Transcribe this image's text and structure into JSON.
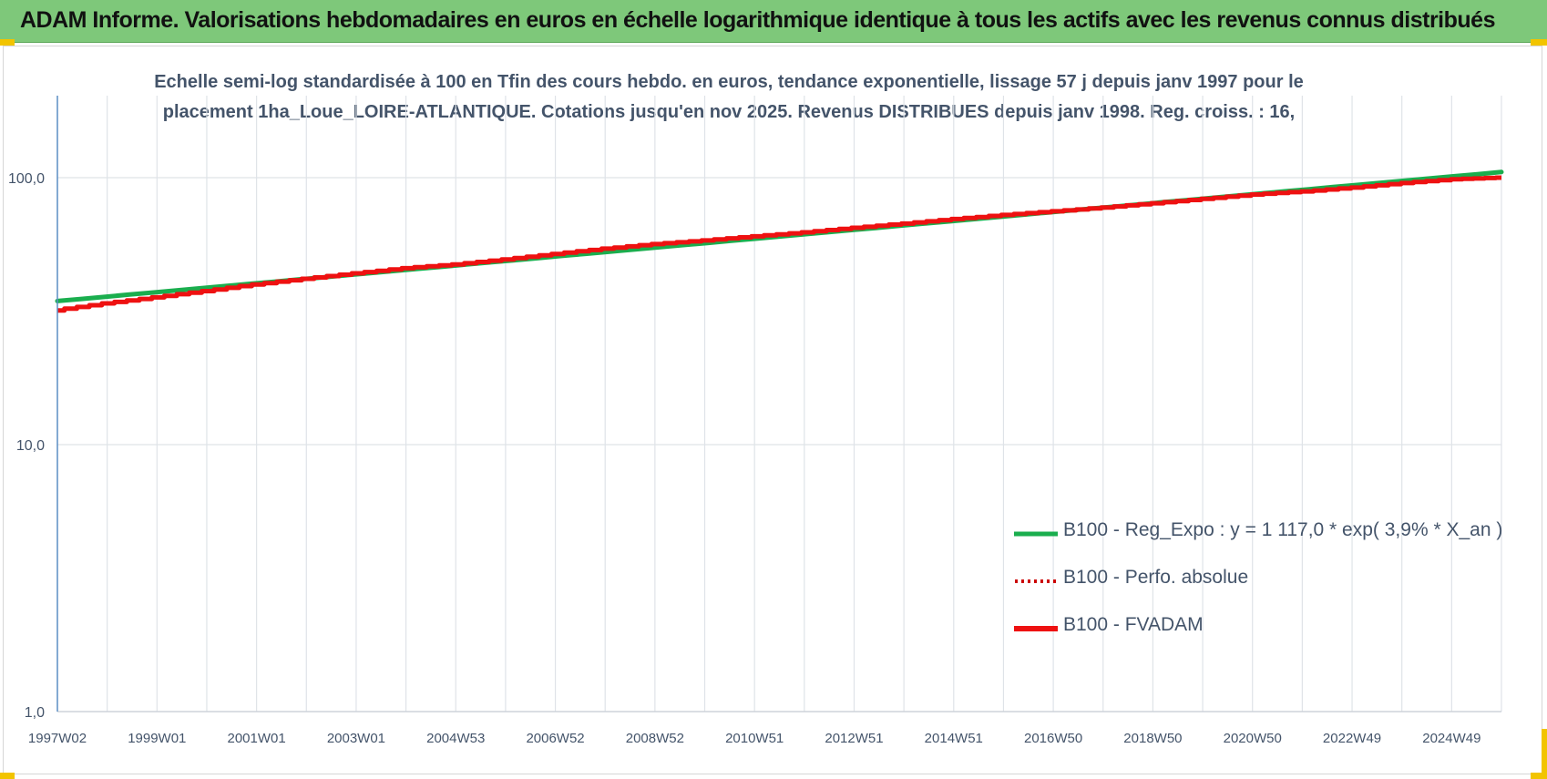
{
  "header": {
    "title": "ADAM Informe. Valorisations hebdomadaires en euros en échelle logarithmique identique à tous les actifs avec les revenus connus distribués"
  },
  "colors": {
    "header_bg": "#7ec87a",
    "accent_corner": "#f2c400",
    "reg_expo": "#1aae4e",
    "fvadam": "#ee1111",
    "perfo": "#cc0000",
    "axis_text": "#44546a"
  },
  "chart_data": {
    "type": "line",
    "title_lines": [
      "Echelle semi-log standardisée à 100 en Tfin des cours hebdo. en euros, tendance exponentielle, lissage 57 j depuis janv 1997 pour le",
      "placement 1ha_Loue_LOIRE-ATLANTIQUE. Cotations jusqu'en nov 2025. Revenus DISTRIBUES depuis janv 1998. Reg. croiss. : 16,"
    ],
    "y_scale": "log",
    "ylim": [
      1,
      100
    ],
    "y_ticks": [
      "100,0",
      "10,0",
      "1,0"
    ],
    "x_tick_labels": [
      "1997W02",
      "1999W01",
      "2001W01",
      "2003W01",
      "2004W53",
      "2006W52",
      "2008W52",
      "2010W51",
      "2012W51",
      "2014W51",
      "2016W50",
      "2018W50",
      "2020W50",
      "2022W49",
      "2024W49"
    ],
    "x_range_years": [
      1997.0,
      2025.9
    ],
    "grid": "vertical and horizontal",
    "legend_position": "bottom-right",
    "series": [
      {
        "name": "B100 - Reg_Expo : y = 1 117,0 * exp( 3,9% *  X_an )",
        "style": "solid-green",
        "x": [
          1997.0,
          2025.9
        ],
        "y": [
          34.5,
          105
        ]
      },
      {
        "name": "B100 - Perfo. absolue",
        "style": "dotted-red",
        "x": [],
        "y": []
      },
      {
        "name": "B100 - FVADAM",
        "style": "solid-red",
        "x": [
          1997.0,
          1998.0,
          1999.0,
          2000.0,
          2001.0,
          2002.0,
          2003.0,
          2004.0,
          2005.0,
          2006.0,
          2007.0,
          2008.0,
          2009.0,
          2010.0,
          2011.0,
          2012.0,
          2013.0,
          2014.0,
          2015.0,
          2016.0,
          2017.0,
          2018.0,
          2019.0,
          2020.0,
          2021.0,
          2022.0,
          2023.0,
          2024.0,
          2025.0,
          2025.9
        ],
        "y": [
          31.8,
          33.8,
          35.6,
          37.6,
          39.8,
          41.8,
          43.8,
          45.8,
          47.3,
          49.4,
          51.8,
          54.2,
          56.4,
          58.2,
          60.3,
          62.4,
          64.9,
          67.3,
          70.0,
          72.5,
          74.8,
          77.3,
          80.2,
          83.3,
          86.5,
          88.8,
          91.8,
          95.5,
          98.6,
          100.0
        ]
      }
    ]
  }
}
